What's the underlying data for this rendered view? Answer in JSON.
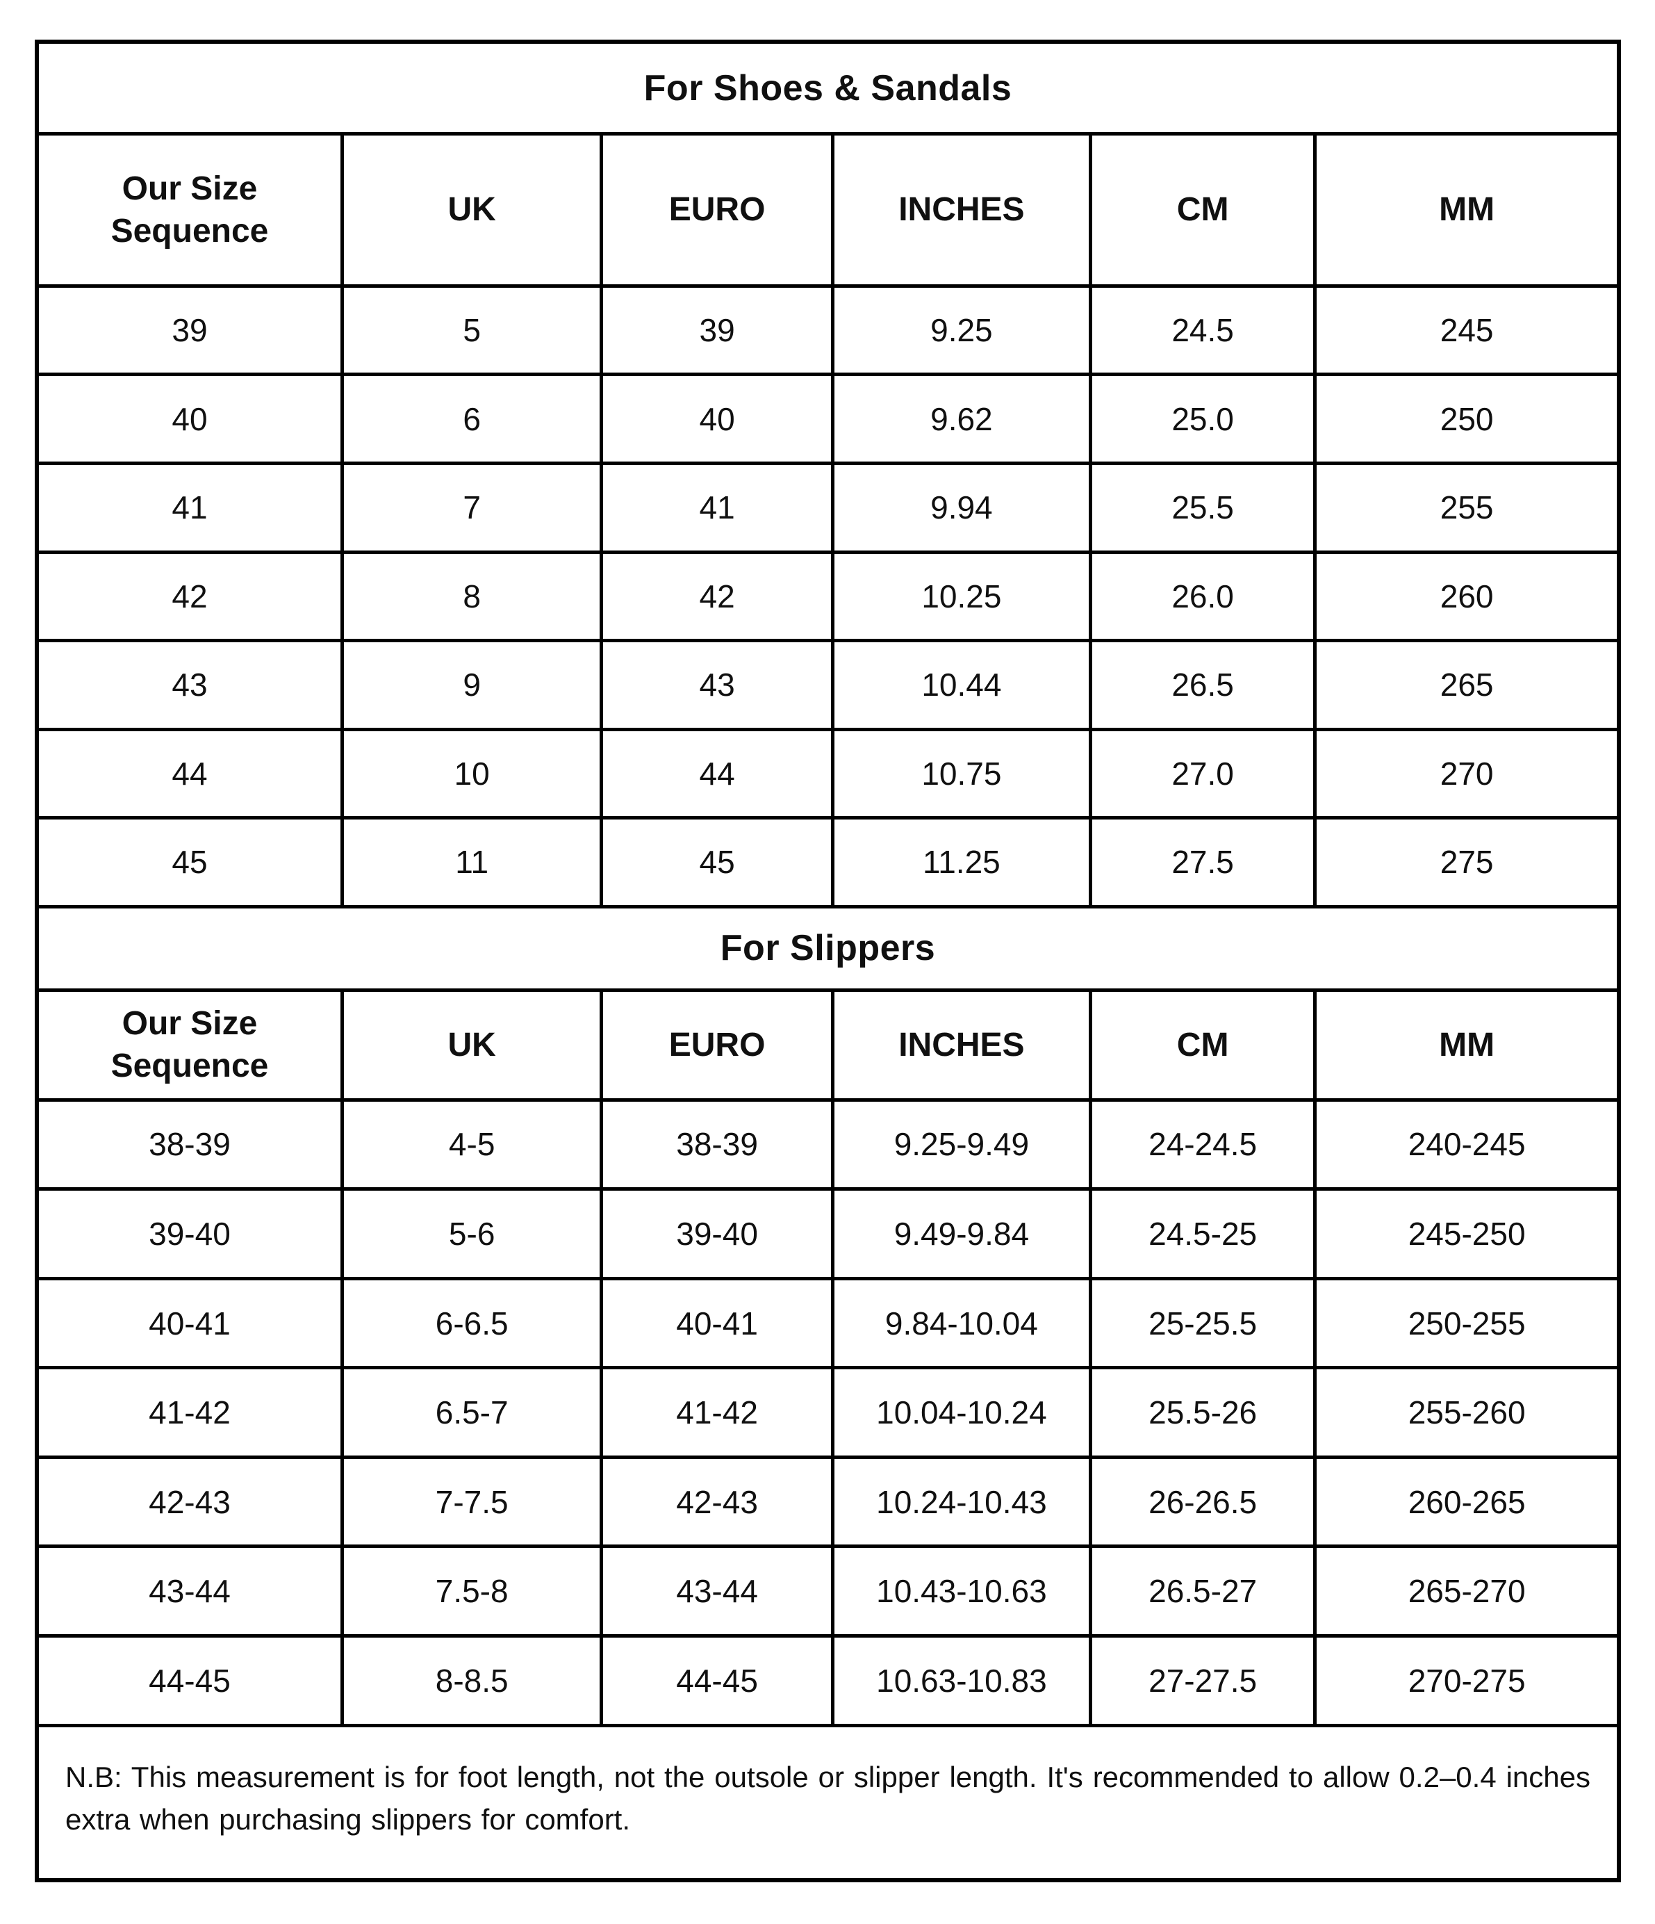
{
  "page": {
    "background": "#ffffff",
    "border_color": "#000000",
    "text_color": "#101010"
  },
  "sections": [
    {
      "title": "For Shoes & Sandals",
      "columns": [
        "Our Size\nSequence",
        "UK",
        "EURO",
        "INCHES",
        "CM",
        "MM"
      ],
      "rows": [
        [
          "39",
          "5",
          "39",
          "9.25",
          "24.5",
          "245"
        ],
        [
          "40",
          "6",
          "40",
          "9.62",
          "25.0",
          "250"
        ],
        [
          "41",
          "7",
          "41",
          "9.94",
          "25.5",
          "255"
        ],
        [
          "42",
          "8",
          "42",
          "10.25",
          "26.0",
          "260"
        ],
        [
          "43",
          "9",
          "43",
          "10.44",
          "26.5",
          "265"
        ],
        [
          "44",
          "10",
          "44",
          "10.75",
          "27.0",
          "270"
        ],
        [
          "45",
          "11",
          "45",
          "11.25",
          "27.5",
          "275"
        ]
      ]
    },
    {
      "title": "For Slippers",
      "columns": [
        "Our Size\nSequence",
        "UK",
        "EURO",
        "INCHES",
        "CM",
        "MM"
      ],
      "rows": [
        [
          "38-39",
          "4-5",
          "38-39",
          "9.25-9.49",
          "24-24.5",
          "240-245"
        ],
        [
          "39-40",
          "5-6",
          "39-40",
          "9.49-9.84",
          "24.5-25",
          "245-250"
        ],
        [
          "40-41",
          "6-6.5",
          "40-41",
          "9.84-10.04",
          "25-25.5",
          "250-255"
        ],
        [
          "41-42",
          "6.5-7",
          "41-42",
          "10.04-10.24",
          "25.5-26",
          "255-260"
        ],
        [
          "42-43",
          "7-7.5",
          "42-43",
          "10.24-10.43",
          "26-26.5",
          "260-265"
        ],
        [
          "43-44",
          "7.5-8",
          "43-44",
          "10.43-10.63",
          "26.5-27",
          "265-270"
        ],
        [
          "44-45",
          "8-8.5",
          "44-45",
          "10.63-10.83",
          "27-27.5",
          "270-275"
        ]
      ]
    }
  ],
  "note": "N.B: This measurement is for foot length, not the outsole or slipper length. It's recommended to allow 0.2–0.4 inches extra when purchasing slippers for comfort."
}
